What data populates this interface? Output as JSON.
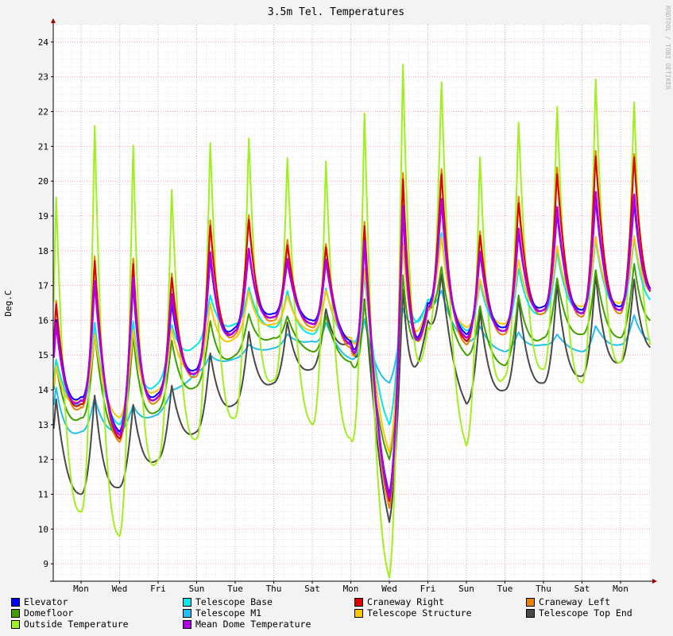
{
  "chart_data": {
    "type": "line",
    "title": "3.5m Tel. Temperatures",
    "ylabel": "Deg.C",
    "watermark": "RRDTOOL / TOBI OETIKER",
    "ylim": [
      8.5,
      24.5
    ],
    "yticks": [
      9,
      10,
      11,
      12,
      13,
      14,
      15,
      16,
      17,
      18,
      19,
      20,
      21,
      22,
      23,
      24
    ],
    "xlim": [
      0,
      16.3
    ],
    "xticks": [
      {
        "label": "Mon",
        "x": 1
      },
      {
        "label": "Wed",
        "x": 2
      },
      {
        "label": "Fri",
        "x": 3
      },
      {
        "label": "Sun",
        "x": 4
      },
      {
        "label": "Tue",
        "x": 5
      },
      {
        "label": "Thu",
        "x": 6
      },
      {
        "label": "Sat",
        "x": 7
      },
      {
        "label": "Mon",
        "x": 8
      },
      {
        "label": "Wed",
        "x": 9
      },
      {
        "label": "Fri",
        "x": 10
      },
      {
        "label": "Sun",
        "x": 11
      },
      {
        "label": "Tue",
        "x": 12
      },
      {
        "label": "Thu",
        "x": 13
      },
      {
        "label": "Sat",
        "x": 14
      },
      {
        "label": "Mon",
        "x": 15
      }
    ],
    "grid": true,
    "days": [
      0,
      1,
      2,
      3,
      4,
      5,
      6,
      7,
      8,
      9,
      10,
      11,
      12,
      13,
      14,
      15,
      16
    ],
    "series": [
      {
        "name": "Elevator",
        "color": "#0000ff",
        "key": "elevator",
        "daily_min": [
          12.8,
          13.8,
          12.8,
          13.9,
          14.6,
          15.8,
          16.2,
          16.0,
          15.4,
          11.0,
          16.5,
          15.6,
          15.8,
          16.4,
          16.3,
          16.4,
          16.9
        ],
        "daily_max": [
          15.6,
          16.9,
          17.7,
          15.9,
          17.6,
          18.2,
          17.8,
          17.5,
          18.1,
          18.6,
          20.4,
          17.8,
          18.3,
          19.0,
          19.3,
          19.9,
          18.5
        ]
      },
      {
        "name": "Telescope Base",
        "color": "#00e8e8",
        "key": "base",
        "daily_min": [
          13.2,
          13.6,
          13.0,
          14.2,
          15.3,
          15.9,
          15.8,
          15.6,
          15.5,
          13.0,
          16.6,
          15.7,
          15.8,
          16.2,
          16.3,
          16.4,
          16.5
        ],
        "daily_max": [
          14.4,
          15.8,
          16.3,
          15.5,
          16.6,
          17.0,
          16.9,
          16.8,
          17.2,
          17.5,
          19.4,
          17.0,
          17.3,
          17.9,
          18.2,
          18.6,
          18.0
        ]
      },
      {
        "name": "Craneway Right",
        "color": "#e00000",
        "key": "right",
        "daily_min": [
          12.6,
          13.6,
          12.6,
          13.8,
          14.5,
          15.7,
          16.1,
          15.9,
          15.3,
          10.8,
          16.4,
          15.4,
          15.7,
          16.3,
          16.2,
          16.3,
          16.8
        ],
        "daily_max": [
          16.0,
          17.5,
          18.3,
          16.6,
          18.5,
          19.3,
          18.3,
          18.0,
          18.4,
          19.5,
          21.4,
          18.2,
          19.0,
          20.2,
          20.4,
          21.5,
          19.4
        ]
      },
      {
        "name": "Craneway Left",
        "color": "#e88000",
        "key": "left",
        "daily_min": [
          12.5,
          13.5,
          12.5,
          13.7,
          14.4,
          15.6,
          16.0,
          15.8,
          15.2,
          10.6,
          16.3,
          15.3,
          15.6,
          16.2,
          16.1,
          16.2,
          16.7
        ],
        "daily_max": [
          16.1,
          17.6,
          18.5,
          16.7,
          18.7,
          19.4,
          18.5,
          18.1,
          18.5,
          19.7,
          21.6,
          18.3,
          19.2,
          20.4,
          20.6,
          21.6,
          19.5
        ]
      },
      {
        "name": "Domefloor",
        "color": "#40a000",
        "key": "floor",
        "daily_min": [
          12.4,
          13.2,
          12.6,
          13.4,
          14.1,
          15.0,
          15.5,
          15.1,
          14.8,
          12.0,
          16.4,
          15.0,
          14.7,
          15.5,
          15.6,
          15.5,
          16.0
        ],
        "daily_max": [
          14.3,
          15.6,
          15.8,
          15.2,
          15.9,
          16.2,
          16.2,
          16.0,
          16.4,
          16.9,
          18.2,
          16.4,
          16.5,
          17.2,
          17.3,
          17.8,
          17.4
        ]
      },
      {
        "name": "Telescope M1",
        "color": "#20c0f0",
        "key": "m1",
        "daily_min": [
          12.3,
          12.8,
          12.8,
          13.3,
          14.5,
          14.9,
          15.2,
          15.4,
          14.9,
          14.2,
          16.5,
          15.4,
          15.1,
          15.3,
          15.1,
          15.3,
          15.4
        ],
        "daily_max": [
          14.2,
          13.9,
          13.6,
          13.5,
          14.9,
          15.2,
          15.5,
          15.8,
          16.2,
          15.8,
          17.4,
          15.9,
          15.7,
          15.6,
          15.6,
          16.3,
          15.9
        ]
      },
      {
        "name": "Telescope Structure",
        "color": "#f8c800",
        "key": "struct",
        "daily_min": [
          12.7,
          13.8,
          13.2,
          14.0,
          14.6,
          15.5,
          15.9,
          15.7,
          15.5,
          12.2,
          16.5,
          15.8,
          15.9,
          16.4,
          16.4,
          16.5,
          16.8
        ],
        "daily_max": [
          14.3,
          15.5,
          15.9,
          15.5,
          16.3,
          16.9,
          16.8,
          16.6,
          17.4,
          17.8,
          19.2,
          17.0,
          17.6,
          18.1,
          18.3,
          18.7,
          18.0
        ]
      },
      {
        "name": "Telescope Top End",
        "color": "#484848",
        "key": "topend",
        "daily_min": [
          11.2,
          11.0,
          11.2,
          12.0,
          12.8,
          13.6,
          14.2,
          14.6,
          15.4,
          10.2,
          16.0,
          13.6,
          14.0,
          14.2,
          14.4,
          14.8,
          15.2
        ],
        "daily_max": [
          13.6,
          14.1,
          13.5,
          13.8,
          14.8,
          15.6,
          15.9,
          16.1,
          16.8,
          16.4,
          18.0,
          16.2,
          16.5,
          17.0,
          17.2,
          17.6,
          16.5
        ]
      },
      {
        "name": "Outside Temperature",
        "color": "#a0f020",
        "key": "outside",
        "daily_min": [
          10.4,
          10.5,
          9.8,
          12.0,
          12.6,
          13.2,
          14.3,
          13.0,
          12.6,
          8.6,
          15.8,
          12.4,
          14.4,
          14.6,
          14.2,
          14.8,
          15.0
        ],
        "daily_max": [
          18.7,
          21.5,
          22.3,
          19.2,
          21.1,
          21.5,
          21.1,
          20.2,
          21.6,
          23.1,
          24.4,
          20.4,
          21.6,
          22.2,
          22.4,
          24.3,
          18.9
        ]
      },
      {
        "name": "Mean Dome Temperature",
        "color": "#b000e8",
        "key": "mean",
        "daily_min": [
          12.7,
          13.7,
          12.7,
          13.8,
          14.5,
          15.7,
          16.1,
          15.9,
          15.3,
          10.9,
          16.4,
          15.5,
          15.7,
          16.3,
          16.2,
          16.3,
          16.8
        ],
        "daily_max": [
          15.5,
          16.8,
          17.9,
          16.2,
          17.9,
          18.2,
          17.9,
          17.6,
          18.1,
          18.8,
          20.5,
          17.8,
          18.4,
          19.2,
          19.5,
          20.2,
          18.7
        ]
      }
    ],
    "draw_order": [
      "m1",
      "topend",
      "floor",
      "outside",
      "base",
      "struct",
      "left",
      "right",
      "elevator",
      "mean"
    ]
  },
  "legend": {
    "columns": 4,
    "items": [
      {
        "label": "Elevator",
        "color": "#0000ff"
      },
      {
        "label": "Telescope Base",
        "color": "#00e8e8"
      },
      {
        "label": "Craneway Right",
        "color": "#e00000"
      },
      {
        "label": "Craneway Left",
        "color": "#e88000"
      },
      {
        "label": "Domefloor",
        "color": "#40a000"
      },
      {
        "label": "Telescope M1",
        "color": "#20c0f0"
      },
      {
        "label": "Telescope Structure",
        "color": "#f8c800"
      },
      {
        "label": "Telescope Top End",
        "color": "#484848"
      },
      {
        "label": "Outside Temperature",
        "color": "#a0f020"
      },
      {
        "label": "Mean Dome Temperature",
        "color": "#b000e8"
      }
    ]
  }
}
